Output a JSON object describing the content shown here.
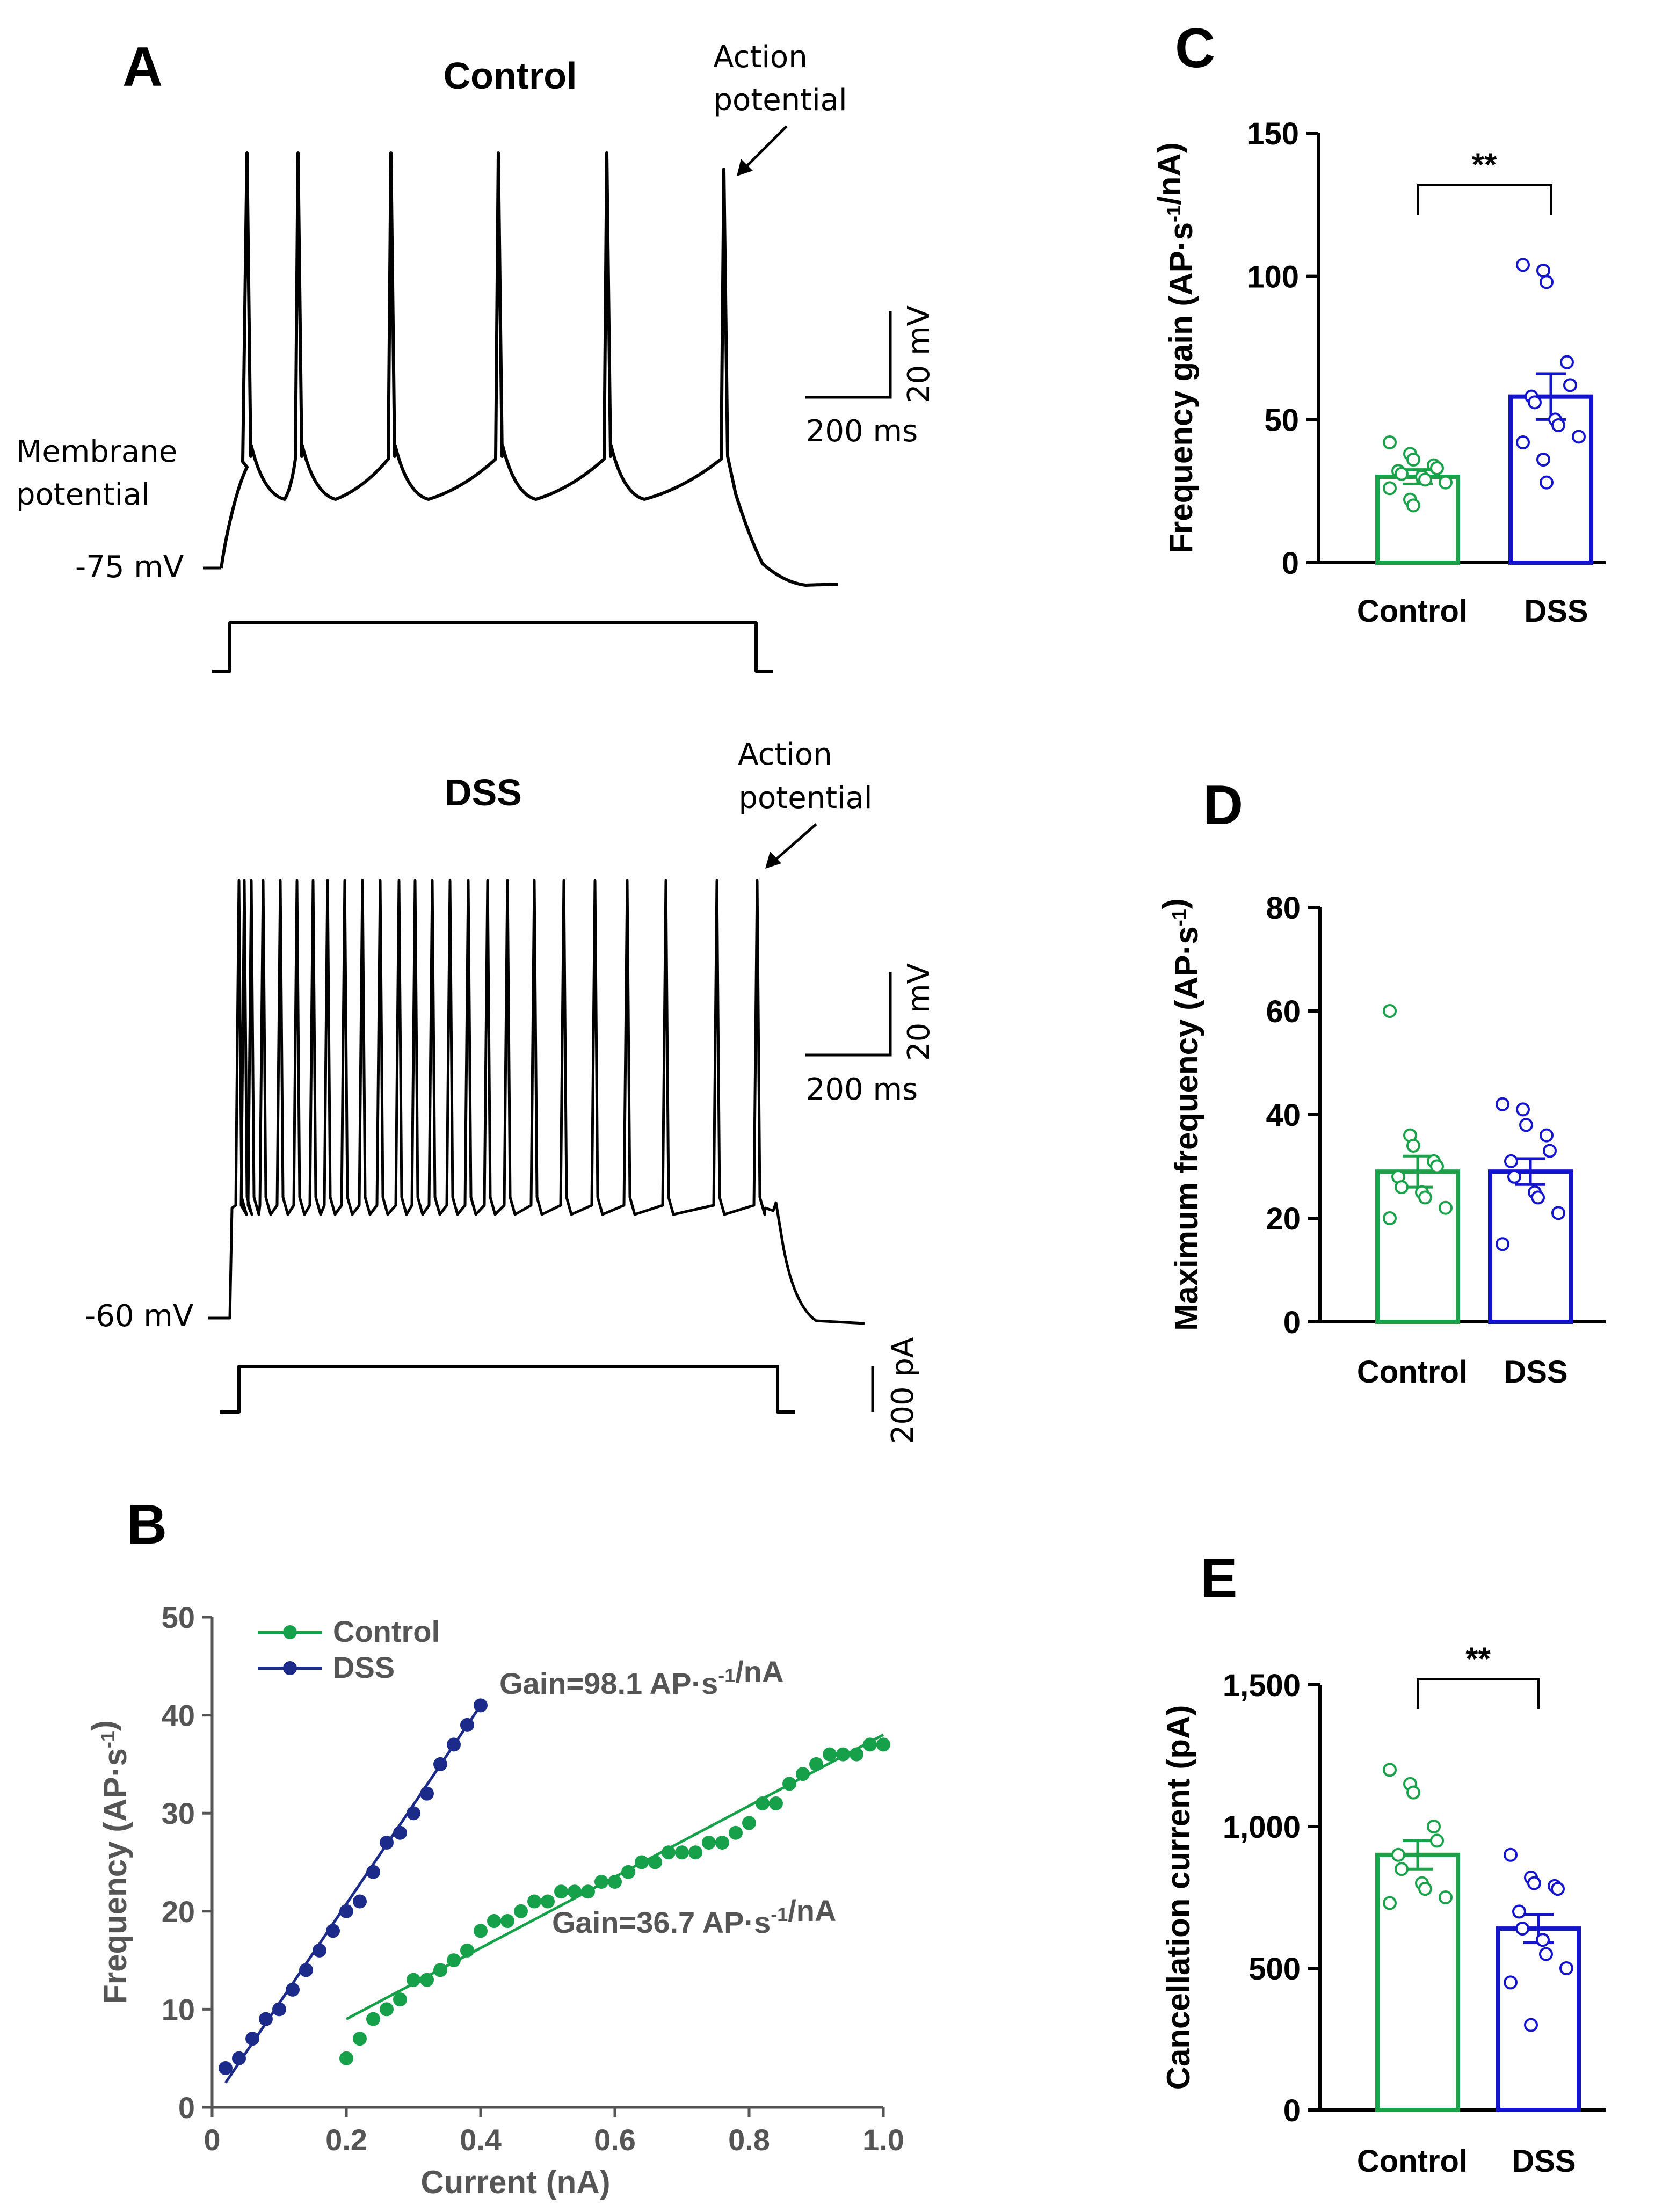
{
  "panels": {
    "A": "A",
    "B": "B",
    "C": "C",
    "D": "D",
    "E": "E"
  },
  "traces": {
    "control_title": "Control",
    "dss_title": "DSS",
    "ap_annotation_line1": "Action",
    "ap_annotation_line2": "potential",
    "membrane_line1": "Membrane",
    "membrane_line2": "potential",
    "control_rest": "-75 mV",
    "dss_rest": "-60 mV",
    "scale_mv": "20 mV",
    "scale_ms": "200 ms",
    "scale_pa": "200 pA"
  },
  "colors": {
    "control": "#1aa24a",
    "dss": "#1414cc",
    "dss_fi": "#1c2a8a",
    "fi_control": "#16a04a"
  },
  "chart_data": [
    {
      "id": "B",
      "type": "scatter",
      "xlabel": "Current (nA)",
      "ylabel": "Frequency (AP·s-1)",
      "xlim": [
        0,
        1.0
      ],
      "ylim": [
        0,
        50
      ],
      "xticks": [
        "0",
        "0.2",
        "0.4",
        "0.6",
        "0.8",
        "1.0"
      ],
      "yticks": [
        "0",
        "10",
        "20",
        "30",
        "40",
        "50"
      ],
      "legend": [
        "Control",
        "DSS"
      ],
      "annotations": {
        "dss_gain": "Gain=98.1 AP·s-1/nA",
        "control_gain": "Gain=36.7 AP·s-1/nA"
      },
      "series": [
        {
          "name": "DSS",
          "x": [
            0.02,
            0.04,
            0.06,
            0.08,
            0.1,
            0.12,
            0.14,
            0.16,
            0.18,
            0.2,
            0.22,
            0.24,
            0.26,
            0.28,
            0.3,
            0.32,
            0.34,
            0.36,
            0.38,
            0.4
          ],
          "y": [
            4,
            5,
            7,
            9,
            10,
            12,
            14,
            16,
            18,
            20,
            21,
            24,
            27,
            28,
            30,
            32,
            35,
            37,
            39,
            41
          ],
          "fit": [
            [
              0.02,
              2.5
            ],
            [
              0.4,
              41
            ]
          ]
        },
        {
          "name": "Control",
          "x": [
            0.2,
            0.22,
            0.24,
            0.26,
            0.28,
            0.3,
            0.32,
            0.34,
            0.36,
            0.38,
            0.4,
            0.42,
            0.44,
            0.46,
            0.48,
            0.5,
            0.52,
            0.54,
            0.56,
            0.58,
            0.6,
            0.62,
            0.64,
            0.66,
            0.68,
            0.7,
            0.72,
            0.74,
            0.76,
            0.78,
            0.8,
            0.82,
            0.84,
            0.86,
            0.88,
            0.9,
            0.92,
            0.94,
            0.96,
            0.98,
            1.0
          ],
          "y": [
            5,
            7,
            9,
            10,
            11,
            13,
            13,
            14,
            15,
            16,
            18,
            19,
            19,
            20,
            21,
            21,
            22,
            22,
            22,
            23,
            23,
            24,
            25,
            25,
            26,
            26,
            26,
            27,
            27,
            28,
            29,
            31,
            31,
            33,
            34,
            35,
            36,
            36,
            36,
            37,
            37
          ],
          "fit": [
            [
              0.2,
              9
            ],
            [
              1.0,
              38
            ]
          ]
        }
      ]
    },
    {
      "id": "C",
      "type": "bar",
      "ylabel": "Frequency gain (AP·s-1/nA)",
      "ylim": [
        0,
        150
      ],
      "yticks": [
        "0",
        "50",
        "100",
        "150"
      ],
      "categories": [
        "Control",
        "DSS"
      ],
      "values": [
        30,
        58
      ],
      "sem": [
        2.5,
        8
      ],
      "significance": "**",
      "points": [
        [
          42,
          38,
          36,
          34,
          33,
          32,
          31,
          30,
          29,
          28,
          26,
          22,
          20
        ],
        [
          104,
          102,
          98,
          70,
          62,
          58,
          56,
          50,
          48,
          44,
          42,
          36,
          28
        ]
      ]
    },
    {
      "id": "D",
      "type": "bar",
      "ylabel": "Maximum frequency (AP·s-1)",
      "ylim": [
        0,
        80
      ],
      "yticks": [
        "0",
        "20",
        "40",
        "60",
        "80"
      ],
      "categories": [
        "Control",
        "DSS"
      ],
      "values": [
        29,
        29
      ],
      "sem": [
        3,
        2.5
      ],
      "points": [
        [
          60,
          36,
          34,
          31,
          30,
          28,
          26,
          25,
          24,
          22,
          20
        ],
        [
          42,
          41,
          38,
          36,
          33,
          31,
          28,
          25,
          24,
          21,
          15
        ]
      ]
    },
    {
      "id": "E",
      "type": "bar",
      "ylabel": "Cancellation current (pA)",
      "ylim": [
        0,
        1500
      ],
      "yticks": [
        "0",
        "500",
        "1,000",
        "1,500"
      ],
      "categories": [
        "Control",
        "DSS"
      ],
      "values": [
        900,
        640
      ],
      "sem": [
        50,
        50
      ],
      "significance": "**",
      "points": [
        [
          1200,
          1150,
          1120,
          1000,
          950,
          900,
          850,
          800,
          780,
          750,
          730
        ],
        [
          900,
          820,
          800,
          790,
          780,
          700,
          640,
          600,
          550,
          500,
          450,
          300
        ]
      ]
    }
  ]
}
